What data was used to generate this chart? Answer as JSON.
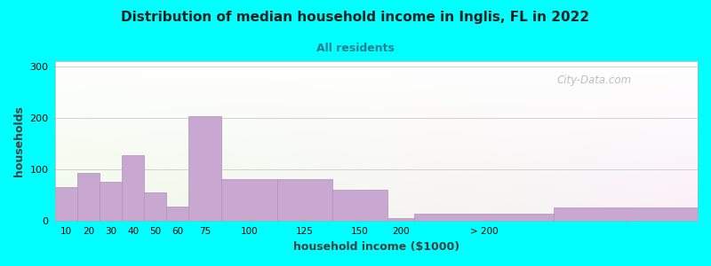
{
  "title": "Distribution of median household income in Inglis, FL in 2022",
  "subtitle": "All residents",
  "xlabel": "household income ($1000)",
  "ylabel": "households",
  "background_color": "#00ffff",
  "bar_color": "#c8a8d0",
  "bar_edge_color": "#b090b8",
  "watermark": "City-Data.com",
  "bar_lefts": [
    0,
    10,
    20,
    30,
    40,
    50,
    60,
    75,
    100,
    125,
    150,
    162,
    225
  ],
  "bar_widths": [
    10,
    10,
    10,
    10,
    10,
    10,
    15,
    25,
    25,
    25,
    12,
    63,
    65
  ],
  "bar_heights": [
    65,
    93,
    75,
    127,
    55,
    27,
    203,
    80,
    80,
    60,
    5,
    13,
    25
  ],
  "xlim": [
    0,
    290
  ],
  "ylim": [
    0,
    310
  ],
  "yticks": [
    0,
    100,
    200,
    300
  ],
  "xtick_positions": [
    5,
    15,
    25,
    35,
    45,
    55,
    67.5,
    87.5,
    112.5,
    137.5,
    156,
    193.5,
    257.5
  ],
  "xtick_labels": [
    "10",
    "20",
    "30",
    "40",
    "50",
    "60",
    "75",
    "100",
    "125",
    "150",
    "200",
    "> 200",
    ""
  ],
  "subtitle_color": "#208090",
  "title_color": "#222222",
  "grid_color": "#dddddd"
}
